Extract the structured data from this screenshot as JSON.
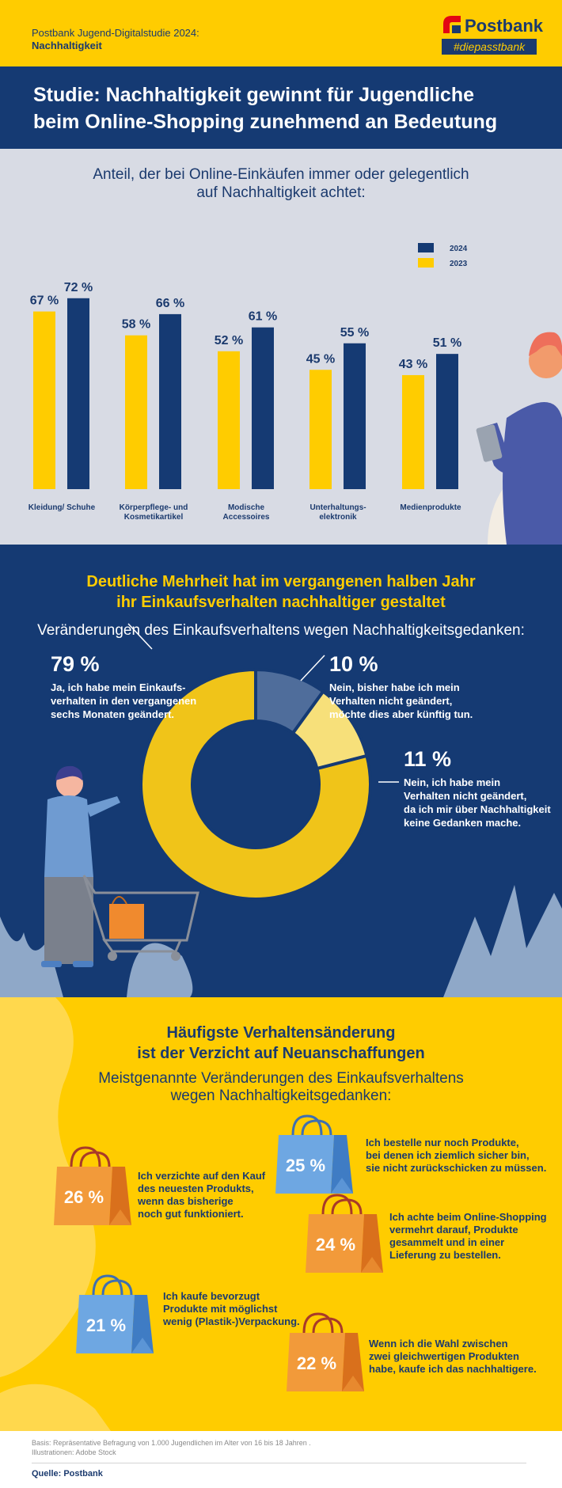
{
  "header": {
    "study_line1": "Postbank Jugend-Digitalstudie 2024:",
    "study_line2": "Nachhaltigkeit",
    "logo_name": "Postbank",
    "logo_tagline": "#diepasstbank"
  },
  "main_title": {
    "line1": "Studie: Nachhaltigkeit gewinnt für Jugendliche",
    "line2": "beim Online-Shopping zunehmend an Bedeutung"
  },
  "bar_section": {
    "question_line1": "Anteil, der bei Online-Einkäufen immer oder gelegentlich",
    "question_line2": "auf Nachhaltigkeit achtet:"
  },
  "donut_section": {
    "title_line1": "Deutliche Mehrheit hat im vergangenen halben Jahr",
    "title_line2": "ihr Einkaufsverhalten nachhaltiger gestaltet",
    "subtitle": "Veränderungen des Einkaufsverhaltens wegen Nachhaltigkeitsgedanken:"
  },
  "bag_section": {
    "title_line1": "Häufigste Verhaltensänderung",
    "title_line2": "ist der Verzicht auf Neuanschaffungen",
    "subtitle_line1": "Meistgenannte Veränderungen des Einkaufsverhaltens",
    "subtitle_line2": "wegen Nachhaltigkeitsgedanken:"
  },
  "footer": {
    "basis": "Basis: Repräsentative Befragung von 1.000 Jugendlichen im Alter von 16 bis 18 Jahren .",
    "illustrations": "Illustrationen: Adobe Stock",
    "source": "Quelle: Postbank"
  },
  "colors": {
    "navy": "#153a73",
    "yellow": "#ffcc00",
    "bar_2024": "#153a73",
    "bar_2023": "#ffcc00",
    "donut_yes": "#f0c419",
    "donut_future": "#4f6d9b",
    "donut_no": "#f7e07a"
  },
  "chart_data": [
    {
      "type": "bar",
      "categories": [
        "Kleidung/ Schuhe",
        "Körperpflege- und Kosmetikartikel",
        "Modische Accessoires",
        "Unterhaltungs- elektronik",
        "Medienprodukte"
      ],
      "category_labels": [
        [
          "Kleidung/ Schuhe"
        ],
        [
          "Körperpflege- und",
          "Kosmetikartikel"
        ],
        [
          "Modische",
          "Accessoires"
        ],
        [
          "Unterhaltungs-",
          "elektronik"
        ],
        [
          "Medienprodukte"
        ]
      ],
      "series": [
        {
          "name": "2023",
          "values": [
            67,
            58,
            52,
            45,
            43
          ],
          "labels": [
            "67 %",
            "58 %",
            "52 %",
            "45 %",
            "43 %"
          ]
        },
        {
          "name": "2024",
          "values": [
            72,
            66,
            61,
            55,
            51
          ],
          "labels": [
            "72 %",
            "66 %",
            "61 %",
            "55 %",
            "51 %"
          ]
        }
      ],
      "legend": [
        "2024",
        "2023"
      ],
      "legend_position": "top-right",
      "ylim": [
        0,
        100
      ],
      "grid": false
    },
    {
      "type": "pie",
      "variant": "donut",
      "slices": [
        {
          "value": 79,
          "label": "79 %",
          "desc": [
            "Ja, ich habe mein Einkaufs-",
            "verhalten in den vergangenen",
            "sechs Monaten geändert."
          ]
        },
        {
          "value": 10,
          "label": "10 %",
          "desc": [
            "Nein, bisher habe ich mein",
            "Verhalten nicht geändert,",
            "möchte dies aber künftig tun."
          ]
        },
        {
          "value": 11,
          "label": "11 %",
          "desc": [
            "Nein, ich habe mein",
            "Verhalten nicht geändert,",
            "da ich mir über Nachhaltigkeit",
            "keine Gedanken mache."
          ]
        }
      ]
    },
    {
      "type": "bar",
      "variant": "pictogram-bags",
      "items": [
        {
          "value": 26,
          "label": "26 %",
          "desc": [
            "Ich verzichte auf den Kauf",
            "des neuesten Produkts,",
            "wenn das bisherige",
            "noch gut funktioniert."
          ],
          "color": "orange"
        },
        {
          "value": 25,
          "label": "25 %",
          "desc": [
            "Ich bestelle nur noch Produkte,",
            "bei denen ich ziemlich sicher bin,",
            "sie nicht zurückschicken zu müssen."
          ],
          "color": "blue"
        },
        {
          "value": 24,
          "label": "24 %",
          "desc": [
            "Ich achte beim Online-Shopping",
            "vermehrt darauf, Produkte",
            "gesammelt und in einer",
            "Lieferung zu bestellen."
          ],
          "color": "orange"
        },
        {
          "value": 21,
          "label": "21 %",
          "desc": [
            "Ich kaufe bevorzugt",
            "Produkte mit möglichst",
            "wenig (Plastik-)Verpackung."
          ],
          "color": "blue"
        },
        {
          "value": 22,
          "label": "22 %",
          "desc": [
            "Wenn ich die Wahl zwischen",
            "zwei gleichwertigen Produkten",
            "habe, kaufe ich das nachhaltigere."
          ],
          "color": "orange"
        }
      ]
    }
  ]
}
